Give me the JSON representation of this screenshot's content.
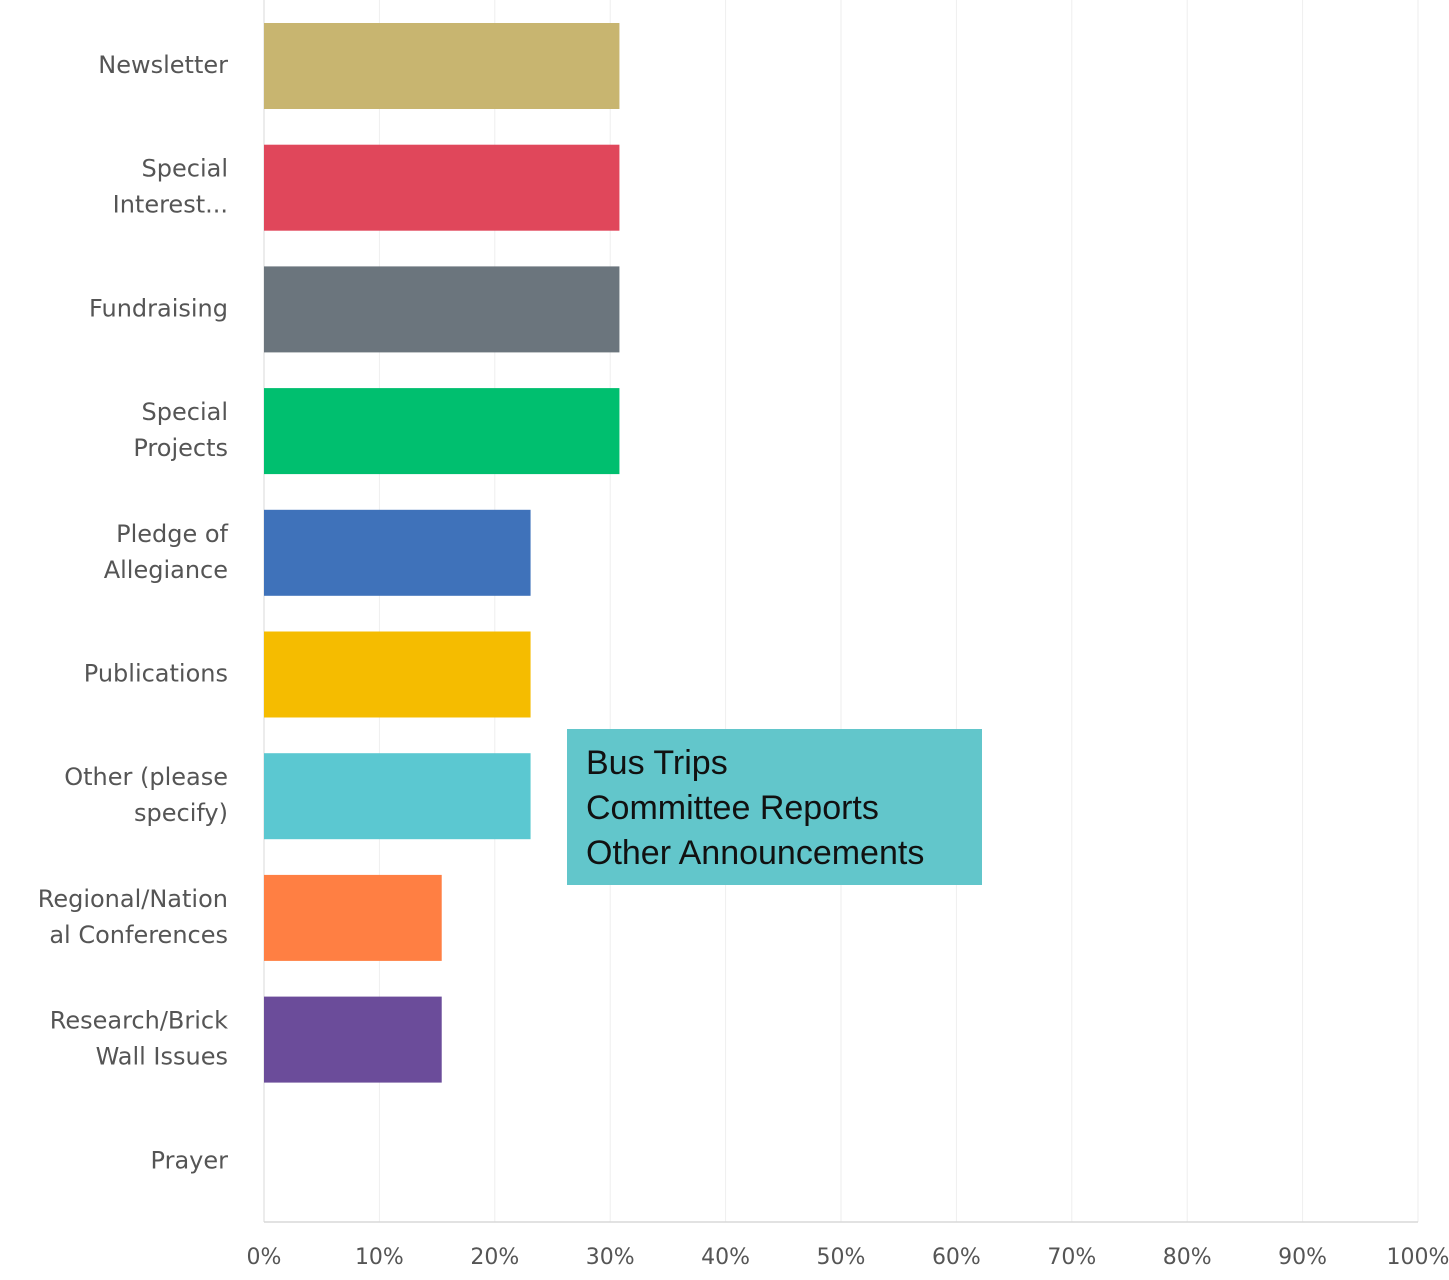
{
  "chart_data": {
    "type": "bar",
    "orientation": "horizontal",
    "categories": [
      [
        "Newsletter"
      ],
      [
        "Special",
        "Interest..."
      ],
      [
        "Fundraising"
      ],
      [
        "Special",
        "Projects"
      ],
      [
        "Pledge of",
        "Allegiance"
      ],
      [
        "Publications"
      ],
      [
        "Other (please",
        "specify)"
      ],
      [
        "Regional/Nation",
        "al Conferences"
      ],
      [
        "Research/Brick",
        "Wall Issues"
      ],
      [
        "Prayer"
      ]
    ],
    "values": [
      30.8,
      30.8,
      30.8,
      30.8,
      23.1,
      23.1,
      23.1,
      15.4,
      15.4,
      0
    ],
    "colors": [
      "#c8b570",
      "#e0475b",
      "#6b757d",
      "#00bf6f",
      "#3f72ba",
      "#f5bc00",
      "#5bc8d1",
      "#ff7f43",
      "#6b4c9a",
      "#9e9e9e"
    ],
    "xlim": [
      0,
      100
    ],
    "xticks": [
      0,
      10,
      20,
      30,
      40,
      50,
      60,
      70,
      80,
      90,
      100
    ],
    "xtick_labels": [
      "0%",
      "10%",
      "20%",
      "30%",
      "40%",
      "50%",
      "60%",
      "70%",
      "80%",
      "90%",
      "100%"
    ],
    "grid": true,
    "title": "",
    "xlabel": "",
    "ylabel": ""
  },
  "annotation": {
    "lines": [
      "Bus Trips",
      "Committee Reports",
      "Other Announcements"
    ],
    "background": "#62c6cb"
  }
}
